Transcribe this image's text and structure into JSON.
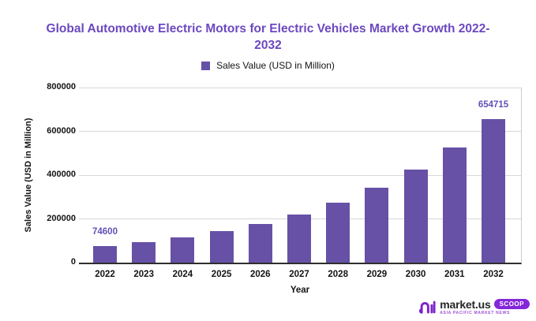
{
  "header": {
    "title_line1": "Global  Automotive Electric Motors for Electric Vehicles Market Growth 2022-",
    "title_line2": "2032"
  },
  "legend": {
    "label": "Sales Value (USD in Million)"
  },
  "chart_data": {
    "type": "bar",
    "title": "Global Automotive Electric Motors for Electric Vehicles Market Growth 2022-2032",
    "categories": [
      "2022",
      "2023",
      "2024",
      "2025",
      "2026",
      "2027",
      "2028",
      "2029",
      "2030",
      "2031",
      "2032"
    ],
    "values": [
      74600,
      92700,
      115200,
      143100,
      177900,
      221000,
      274700,
      341400,
      424200,
      527200,
      654715
    ],
    "labeled_points": {
      "2022": "74600",
      "2032": "654715"
    },
    "xlabel": "Year",
    "ylabel": "Sales Value (USD in Million)",
    "ylim": [
      0,
      800000
    ],
    "yticks": [
      0,
      200000,
      400000,
      600000,
      800000
    ],
    "grid": true,
    "legend_position": "top",
    "legend_entries": [
      "Sales Value (USD in Million)"
    ],
    "bar_color": "#6751A6",
    "data_label_color": "#6151B5"
  },
  "colors": {
    "title": "#6C48C0",
    "bar": "#6751A6",
    "data_label": "#6151B5",
    "gridline": "#D8D8D8",
    "axis_line": "#2E2E2E",
    "badge_bg": "#8426D9"
  },
  "footer_logo": {
    "brand": "market.us",
    "badge": "SCOOP",
    "tagline": "ASIA PACIFIC MARKET NEWS"
  }
}
